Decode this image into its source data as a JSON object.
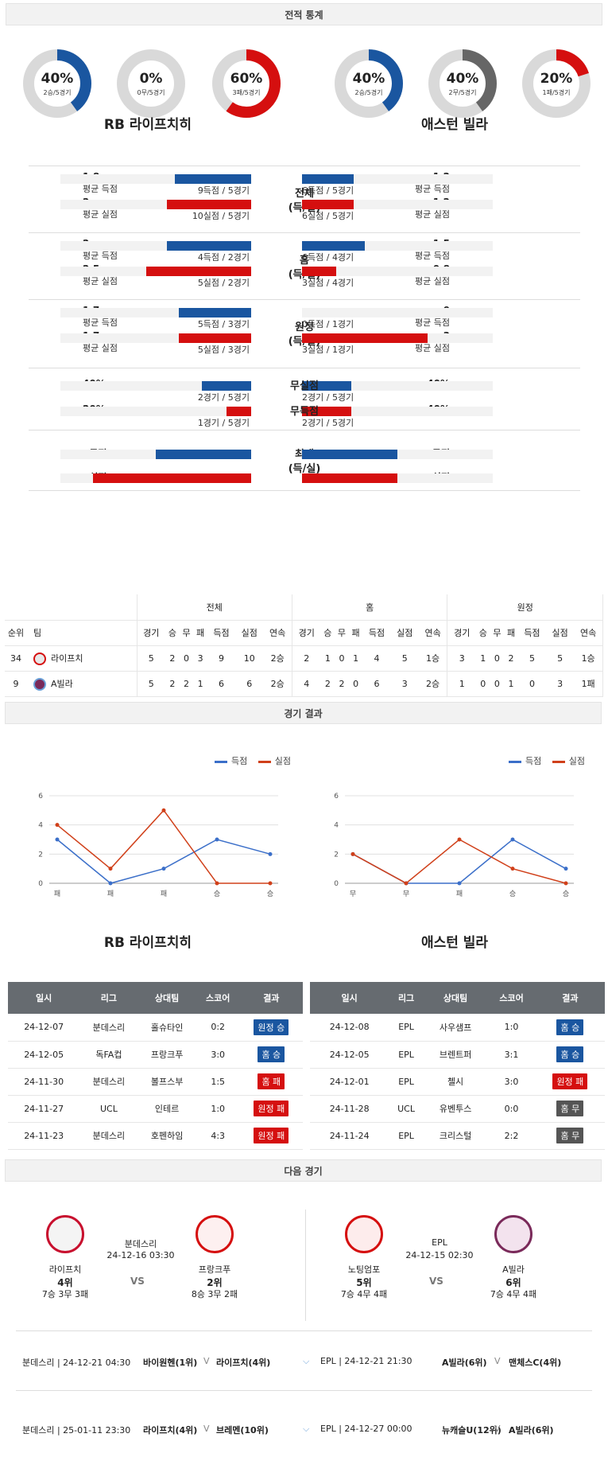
{
  "stats_title": "전적 통계",
  "donuts": [
    {
      "pct": "40%",
      "sub": "2승/5경기",
      "value": 0.4,
      "color": "#1a56a0"
    },
    {
      "pct": "0%",
      "sub": "0무/5경기",
      "value": 0,
      "color": "#666"
    },
    {
      "pct": "60%",
      "sub": "3패/5경기",
      "value": 0.6,
      "color": "#d50f0f"
    },
    {
      "pct": "40%",
      "sub": "2승/5경기",
      "value": 0.4,
      "color": "#1a56a0"
    },
    {
      "pct": "40%",
      "sub": "2무/5경기",
      "value": 0.4,
      "color": "#666"
    },
    {
      "pct": "20%",
      "sub": "1패/5경기",
      "value": 0.2,
      "color": "#d50f0f"
    }
  ],
  "home_team": "RB 라이프치히",
  "away_team": "애스턴 빌라",
  "cmp_blocks": [
    {
      "mid": [
        "전체",
        "(득/실)"
      ],
      "rows": [
        {
          "lv": "1.8",
          "ll": "평균 득점",
          "lbar": 0.4,
          "lt": "9득점 / 5경기",
          "rv": "1.2",
          "rl": "평균 득점",
          "rbar": 0.27,
          "rt": "6득점 / 5경기",
          "color": "blue"
        },
        {
          "lv": "2",
          "ll": "평균 실점",
          "lbar": 0.44,
          "lt": "10실점 / 5경기",
          "rv": "1.2",
          "rl": "평균 실점",
          "rbar": 0.27,
          "rt": "6실점 / 5경기",
          "color": "red"
        }
      ]
    },
    {
      "mid": [
        "홈",
        "(득/실)"
      ],
      "rows": [
        {
          "lv": "2",
          "ll": "평균 득점",
          "lbar": 0.44,
          "lt": "4득점 / 2경기",
          "rv": "1.5",
          "rl": "평균 득점",
          "rbar": 0.33,
          "rt": "6득점 / 4경기",
          "color": "blue"
        },
        {
          "lv": "2.5",
          "ll": "평균 실점",
          "lbar": 0.55,
          "lt": "5실점 / 2경기",
          "rv": "0.8",
          "rl": "평균 실점",
          "rbar": 0.18,
          "rt": "3실점 / 4경기",
          "color": "red"
        }
      ]
    },
    {
      "mid": [
        "원정",
        "(득/실)"
      ],
      "rows": [
        {
          "lv": "1.7",
          "ll": "평균 득점",
          "lbar": 0.38,
          "lt": "5득점 / 3경기",
          "rv": "0",
          "rl": "평균 득점",
          "rbar": 0,
          "rt": "0득점 / 1경기",
          "color": "blue"
        },
        {
          "lv": "1.7",
          "ll": "평균 실점",
          "lbar": 0.38,
          "lt": "5실점 / 3경기",
          "rv": "3",
          "rl": "평균 실점",
          "rbar": 0.66,
          "rt": "3실점 / 1경기",
          "color": "red"
        }
      ]
    },
    {
      "mid": [],
      "rows": [
        {
          "lv": "40%",
          "ll": "",
          "lbar": 0.26,
          "lt": "2경기 / 5경기",
          "mid": "무실점",
          "rv": "40%",
          "rl": "",
          "rbar": 0.26,
          "rt": "2경기 / 5경기",
          "color": "blue"
        },
        {
          "lv": "20%",
          "ll": "",
          "lbar": 0.13,
          "lt": "1경기 / 5경기",
          "mid": "무득점",
          "rv": "40%",
          "rl": "",
          "rbar": 0.26,
          "rt": "2경기 / 5경기",
          "color": "red"
        }
      ]
    },
    {
      "mid": [
        "최대",
        "(득/실)"
      ],
      "rows": [
        {
          "lv": "3득점",
          "ll": "",
          "lbar": 0.5,
          "lt": "",
          "rv": "3득점",
          "rl": "",
          "rbar": 0.5,
          "rt": "",
          "color": "blue"
        },
        {
          "lv": "5실점",
          "ll": "",
          "lbar": 0.83,
          "lt": "",
          "rv": "3실점",
          "rl": "",
          "rbar": 0.5,
          "rt": "",
          "color": "red"
        }
      ]
    }
  ],
  "rank_table": {
    "groups": [
      "전체",
      "홈",
      "원정"
    ],
    "head_left": [
      "순위",
      "팀"
    ],
    "cols": [
      "경기",
      "승",
      "무",
      "패",
      "득점",
      "실점",
      "연속"
    ],
    "rows": [
      {
        "rank": "34",
        "team": "라이프치",
        "logo": "#e8e8e8",
        "all": [
          "5",
          "2",
          "0",
          "3",
          "9",
          "10",
          "2승"
        ],
        "home": [
          "2",
          "1",
          "0",
          "1",
          "4",
          "5",
          "1승"
        ],
        "away": [
          "3",
          "1",
          "0",
          "2",
          "5",
          "5",
          "1승"
        ]
      },
      {
        "rank": "9",
        "team": "A빌라",
        "logo": "#7a2a5a",
        "all": [
          "5",
          "2",
          "2",
          "1",
          "6",
          "6",
          "2승"
        ],
        "home": [
          "4",
          "2",
          "2",
          "0",
          "6",
          "3",
          "2승"
        ],
        "away": [
          "1",
          "0",
          "0",
          "1",
          "0",
          "3",
          "1패"
        ]
      }
    ]
  },
  "results_title": "경기 결과",
  "legend": {
    "scored": "득점",
    "conceded": "실점"
  },
  "chart_data": [
    {
      "type": "line",
      "categories": [
        "패",
        "패",
        "패",
        "승",
        "승"
      ],
      "ylim": [
        0,
        6
      ],
      "yticks": [
        0,
        2,
        4,
        6
      ],
      "series": [
        {
          "name": "득점",
          "color": "#3b6fc9",
          "values": [
            3,
            0,
            1,
            3,
            2
          ]
        },
        {
          "name": "실점",
          "color": "#d0401a",
          "values": [
            4,
            1,
            5,
            0,
            0
          ]
        }
      ]
    },
    {
      "type": "line",
      "categories": [
        "무",
        "무",
        "패",
        "승",
        "승"
      ],
      "ylim": [
        0,
        6
      ],
      "yticks": [
        0,
        2,
        4,
        6
      ],
      "series": [
        {
          "name": "득점",
          "color": "#3b6fc9",
          "values": [
            2,
            0,
            0,
            3,
            1
          ]
        },
        {
          "name": "실점",
          "color": "#d0401a",
          "values": [
            2,
            0,
            3,
            1,
            0
          ]
        }
      ]
    }
  ],
  "results": {
    "headers": [
      "일시",
      "리그",
      "상대팀",
      "스코어",
      "결과"
    ],
    "home": [
      {
        "date": "24-12-07",
        "league": "분데스리",
        "opp": "홀슈타인",
        "score": "0:2",
        "res": "원정 승",
        "cls": "b-blue"
      },
      {
        "date": "24-12-05",
        "league": "독FA컵",
        "opp": "프랑크푸",
        "score": "3:0",
        "res": "홈 승",
        "cls": "b-blue"
      },
      {
        "date": "24-11-30",
        "league": "분데스리",
        "opp": "볼프스부",
        "score": "1:5",
        "res": "홈 패",
        "cls": "b-red"
      },
      {
        "date": "24-11-27",
        "league": "UCL",
        "opp": "인테르",
        "score": "1:0",
        "res": "원정 패",
        "cls": "b-red"
      },
      {
        "date": "24-11-23",
        "league": "분데스리",
        "opp": "호펜하임",
        "score": "4:3",
        "res": "원정 패",
        "cls": "b-red"
      }
    ],
    "away": [
      {
        "date": "24-12-08",
        "league": "EPL",
        "opp": "사우샘프",
        "score": "1:0",
        "res": "홈 승",
        "cls": "b-blue"
      },
      {
        "date": "24-12-05",
        "league": "EPL",
        "opp": "브렌트퍼",
        "score": "3:1",
        "res": "홈 승",
        "cls": "b-blue"
      },
      {
        "date": "24-12-01",
        "league": "EPL",
        "opp": "첼시",
        "score": "3:0",
        "res": "원정 패",
        "cls": "b-red"
      },
      {
        "date": "24-11-28",
        "league": "UCL",
        "opp": "유벤투스",
        "score": "0:0",
        "res": "홈 무",
        "cls": "b-grey"
      },
      {
        "date": "24-11-24",
        "league": "EPL",
        "opp": "크리스털",
        "score": "2:2",
        "res": "홈 무",
        "cls": "b-grey"
      }
    ]
  },
  "next_title": "다음 경기",
  "next": {
    "left": {
      "league": "분데스리",
      "time": "24-12-16 03:30",
      "vs": "VS",
      "t1": {
        "name": "라이프치",
        "rank": "4위",
        "rec": "7승 3무 3패"
      },
      "t2": {
        "name": "프랑크푸",
        "rank": "2위",
        "rec": "8승 3무 2패"
      }
    },
    "right": {
      "league": "EPL",
      "time": "24-12-15 02:30",
      "vs": "VS",
      "t1": {
        "name": "노팅엄포",
        "rank": "5위",
        "rec": "7승 4무 4패"
      },
      "t2": {
        "name": "A빌라",
        "rank": "6위",
        "rec": "7승 4무 4패"
      }
    }
  },
  "later": [
    {
      "l_info": "분데스리 | 24-12-21 04:30",
      "l_t1": "바이원헨(1위)",
      "l_v": "V",
      "l_t2": "라이프치(4위)",
      "r_info": "EPL | 24-12-21 21:30",
      "r_t1": "A빌라(6위)",
      "r_v": "V",
      "r_t2": "맨체스C(4위)"
    },
    {
      "l_info": "분데스리 | 25-01-11 23:30",
      "l_t1": "라이프치(4위)",
      "l_v": "V",
      "l_t2": "브레멘(10위)",
      "r_info": "EPL | 24-12-27 00:00",
      "r_t1": "뉴캐슬U(12위)",
      "r_v": "V",
      "r_t2": "A빌라(6위)"
    }
  ]
}
